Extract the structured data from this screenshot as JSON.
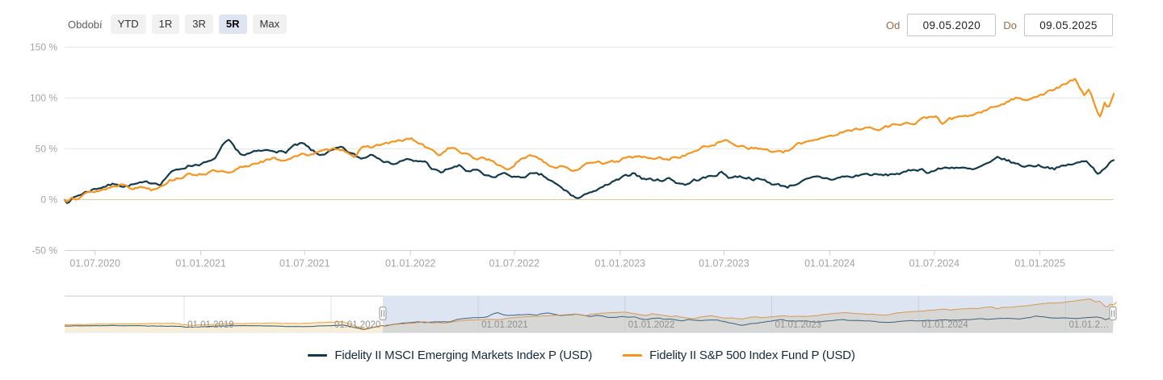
{
  "period_selector": {
    "label": "Období",
    "buttons": [
      {
        "label": "YTD",
        "selected": false
      },
      {
        "label": "1R",
        "selected": false
      },
      {
        "label": "3R",
        "selected": false
      },
      {
        "label": "5R",
        "selected": true
      },
      {
        "label": "Max",
        "selected": false
      }
    ]
  },
  "date_range": {
    "from_label": "Od",
    "from_value": "09.05.2020",
    "to_label": "Do",
    "to_value": "09.05.2025"
  },
  "legend": [
    {
      "label": "Fidelity II MSCI Emerging Markets Index P (USD)",
      "color": "#123a4c"
    },
    {
      "label": "Fidelity II S&P 500 Index Fund P (USD)",
      "color": "#f7941e"
    }
  ],
  "chart_data": {
    "type": "line",
    "title": "",
    "x_unit": "months since 09.05.2020",
    "x_range": [
      "09.05.2020",
      "09.05.2025"
    ],
    "ylim": [
      -50,
      150
    ],
    "grid": true,
    "legend_position": "bottom",
    "y_ticks": [
      {
        "label": "150 %",
        "value": 150
      },
      {
        "label": "100 %",
        "value": 100
      },
      {
        "label": "50 %",
        "value": 50
      },
      {
        "label": "0 %",
        "value": 0
      },
      {
        "label": "-50 %",
        "value": -50
      }
    ],
    "x_ticks": [
      {
        "label": "01.07.2020",
        "m": 1.74
      },
      {
        "label": "01.01.2021",
        "m": 7.79
      },
      {
        "label": "01.07.2021",
        "m": 13.73
      },
      {
        "label": "01.01.2022",
        "m": 19.78
      },
      {
        "label": "01.07.2022",
        "m": 25.72
      },
      {
        "label": "01.01.2023",
        "m": 31.77
      },
      {
        "label": "01.07.2023",
        "m": 37.71
      },
      {
        "label": "01.01.2024",
        "m": 43.76
      },
      {
        "label": "01.07.2024",
        "m": 49.74
      },
      {
        "label": "01.01.2025",
        "m": 55.78
      }
    ],
    "series": [
      {
        "name": "Fidelity II MSCI Emerging Markets Index P (USD)",
        "color": "#123a4c",
        "points": [
          [
            0,
            0
          ],
          [
            0.25,
            -3
          ],
          [
            0.5,
            2
          ],
          [
            1,
            6
          ],
          [
            1.6,
            10
          ],
          [
            2,
            12
          ],
          [
            3,
            16
          ],
          [
            3.4,
            13
          ],
          [
            4,
            15
          ],
          [
            5,
            17
          ],
          [
            5.5,
            16
          ],
          [
            6,
            26
          ],
          [
            7,
            33
          ],
          [
            8,
            36
          ],
          [
            8.5,
            38
          ],
          [
            9,
            52
          ],
          [
            9.4,
            58
          ],
          [
            9.8,
            48
          ],
          [
            10.2,
            44
          ],
          [
            11,
            47
          ],
          [
            12,
            49
          ],
          [
            12.6,
            46
          ],
          [
            13,
            52
          ],
          [
            13.6,
            55
          ],
          [
            14,
            50
          ],
          [
            14.5,
            44
          ],
          [
            15,
            46
          ],
          [
            15.8,
            51
          ],
          [
            16.3,
            46
          ],
          [
            17,
            40
          ],
          [
            17.5,
            45
          ],
          [
            18,
            42
          ],
          [
            18.5,
            36
          ],
          [
            19,
            36
          ],
          [
            19.5,
            40
          ],
          [
            20,
            37
          ],
          [
            20.6,
            38
          ],
          [
            21,
            31
          ],
          [
            21.5,
            26
          ],
          [
            22,
            31
          ],
          [
            22.6,
            33
          ],
          [
            23,
            28
          ],
          [
            23.5,
            29
          ],
          [
            24,
            24
          ],
          [
            24.5,
            21
          ],
          [
            25,
            26
          ],
          [
            25.5,
            24
          ],
          [
            26,
            21
          ],
          [
            26.6,
            25
          ],
          [
            27.3,
            24
          ],
          [
            28,
            16
          ],
          [
            28.8,
            7
          ],
          [
            29.3,
            1
          ],
          [
            29.7,
            3
          ],
          [
            30,
            8
          ],
          [
            30.6,
            10
          ],
          [
            31,
            14
          ],
          [
            32,
            22
          ],
          [
            32.6,
            27
          ],
          [
            33,
            21
          ],
          [
            33.5,
            20
          ],
          [
            34,
            19
          ],
          [
            34.6,
            21
          ],
          [
            35,
            17
          ],
          [
            35.6,
            15
          ],
          [
            36,
            19
          ],
          [
            37,
            23
          ],
          [
            37.6,
            27
          ],
          [
            38,
            22
          ],
          [
            38.6,
            23
          ],
          [
            39,
            22
          ],
          [
            39.6,
            20
          ],
          [
            40,
            19
          ],
          [
            40.6,
            15
          ],
          [
            41,
            14
          ],
          [
            41.4,
            13
          ],
          [
            42,
            17
          ],
          [
            42.6,
            20
          ],
          [
            43,
            22
          ],
          [
            43.6,
            21
          ],
          [
            44,
            20
          ],
          [
            44.6,
            23
          ],
          [
            45,
            22
          ],
          [
            45.6,
            25
          ],
          [
            46,
            25
          ],
          [
            46.6,
            24
          ],
          [
            47,
            24
          ],
          [
            47.6,
            26
          ],
          [
            48,
            26
          ],
          [
            48.6,
            30
          ],
          [
            49,
            30
          ],
          [
            49.4,
            27
          ],
          [
            50,
            30
          ],
          [
            50.6,
            32
          ],
          [
            51,
            32
          ],
          [
            51.6,
            30
          ],
          [
            52,
            29
          ],
          [
            52.6,
            34
          ],
          [
            53,
            36
          ],
          [
            53.4,
            42
          ],
          [
            53.8,
            39
          ],
          [
            54,
            38
          ],
          [
            54.6,
            34
          ],
          [
            55,
            33
          ],
          [
            55.6,
            34
          ],
          [
            56,
            33
          ],
          [
            56.6,
            31
          ],
          [
            57,
            32
          ],
          [
            57.6,
            35
          ],
          [
            58,
            36
          ],
          [
            58.4,
            38
          ],
          [
            58.8,
            33
          ],
          [
            59.1,
            25
          ],
          [
            59.4,
            31
          ],
          [
            59.7,
            35
          ],
          [
            60,
            38
          ]
        ]
      },
      {
        "name": "Fidelity II S&P 500 Index Fund P (USD)",
        "color": "#f7941e",
        "points": [
          [
            0,
            0
          ],
          [
            0.15,
            -2
          ],
          [
            0.4,
            4
          ],
          [
            0.7,
            2
          ],
          [
            1,
            5
          ],
          [
            1.6,
            8
          ],
          [
            2,
            9
          ],
          [
            2.6,
            12
          ],
          [
            3,
            14
          ],
          [
            3.4,
            16
          ],
          [
            4,
            11
          ],
          [
            4.5,
            13
          ],
          [
            5,
            10
          ],
          [
            5.6,
            15
          ],
          [
            6,
            19
          ],
          [
            6.6,
            22
          ],
          [
            7,
            24
          ],
          [
            8,
            26
          ],
          [
            8.6,
            28
          ],
          [
            9,
            27
          ],
          [
            9.5,
            25
          ],
          [
            10,
            31
          ],
          [
            10.6,
            34
          ],
          [
            11,
            37
          ],
          [
            12,
            40
          ],
          [
            12.6,
            39
          ],
          [
            13,
            42
          ],
          [
            14,
            45
          ],
          [
            15,
            48
          ],
          [
            15.7,
            51
          ],
          [
            16.2,
            47
          ],
          [
            16.6,
            43
          ],
          [
            17,
            50
          ],
          [
            18,
            54
          ],
          [
            18.6,
            56
          ],
          [
            19,
            57
          ],
          [
            19.8,
            60
          ],
          [
            20.3,
            55
          ],
          [
            20.6,
            52
          ],
          [
            21,
            48
          ],
          [
            21.5,
            44
          ],
          [
            22,
            52
          ],
          [
            22.5,
            48
          ],
          [
            23,
            44
          ],
          [
            23.5,
            40
          ],
          [
            24,
            42
          ],
          [
            24.8,
            34
          ],
          [
            25.4,
            30
          ],
          [
            26,
            38
          ],
          [
            26.8,
            44
          ],
          [
            27.5,
            37
          ],
          [
            28,
            32
          ],
          [
            28.5,
            34
          ],
          [
            29,
            30
          ],
          [
            29.4,
            28
          ],
          [
            30,
            36
          ],
          [
            30.5,
            39
          ],
          [
            31,
            35
          ],
          [
            31.6,
            38
          ],
          [
            32,
            40
          ],
          [
            32.8,
            43
          ],
          [
            33.5,
            40
          ],
          [
            34,
            41
          ],
          [
            34.6,
            40
          ],
          [
            35,
            42
          ],
          [
            35.6,
            44
          ],
          [
            36,
            48
          ],
          [
            37,
            54
          ],
          [
            37.8,
            58
          ],
          [
            38.5,
            54
          ],
          [
            39,
            52
          ],
          [
            39.6,
            50
          ],
          [
            40,
            50
          ],
          [
            40.6,
            47
          ],
          [
            41,
            46
          ],
          [
            41.4,
            48
          ],
          [
            42,
            55
          ],
          [
            43,
            60
          ],
          [
            44,
            64
          ],
          [
            44.5,
            66
          ],
          [
            45,
            68
          ],
          [
            45.8,
            72
          ],
          [
            46.5,
            68
          ],
          [
            47,
            72
          ],
          [
            48,
            76
          ],
          [
            48.6,
            74
          ],
          [
            49,
            79
          ],
          [
            49.8,
            83
          ],
          [
            50.2,
            73
          ],
          [
            50.6,
            80
          ],
          [
            51,
            80
          ],
          [
            51.6,
            82
          ],
          [
            52,
            84
          ],
          [
            52.6,
            87
          ],
          [
            53,
            90
          ],
          [
            54,
            97
          ],
          [
            54.5,
            100
          ],
          [
            55,
            99
          ],
          [
            55.6,
            102
          ],
          [
            56,
            104
          ],
          [
            56.8,
            110
          ],
          [
            57.5,
            116
          ],
          [
            57.8,
            118
          ],
          [
            58.3,
            104
          ],
          [
            58.6,
            108
          ],
          [
            59,
            88
          ],
          [
            59.2,
            80
          ],
          [
            59.5,
            96
          ],
          [
            59.7,
            90
          ],
          [
            60,
            103
          ]
        ]
      }
    ],
    "navigator": {
      "t_unit": "years since 09.03.2018",
      "t_max": 7.143,
      "selected_from_t": 2.168,
      "selected_to_t": 7.143,
      "x_labels": [
        {
          "label": "01.01.2019",
          "t": 0.815
        },
        {
          "label": "01.01.2020",
          "t": 1.815
        },
        {
          "label": "01.01.2021",
          "t": 2.818
        },
        {
          "label": "01.01.2022",
          "t": 3.818
        },
        {
          "label": "01.01.2023",
          "t": 4.818
        },
        {
          "label": "01.01.2024",
          "t": 5.818
        },
        {
          "label": "01.01.2…",
          "t": 6.821
        }
      ],
      "pre_series": [
        {
          "name": "Fidelity II MSCI Emerging Markets Index P (USD)",
          "pre_points": [
            [
              0,
              -2
            ],
            [
              0.3,
              0
            ],
            [
              0.5,
              -1
            ],
            [
              0.75,
              -3
            ],
            [
              0.87,
              -8
            ],
            [
              1,
              -3
            ],
            [
              1.2,
              0
            ],
            [
              1.4,
              -2
            ],
            [
              1.6,
              -5
            ],
            [
              1.75,
              -2
            ],
            [
              1.9,
              2
            ],
            [
              2.04,
              -18
            ],
            [
              2.1,
              -9
            ],
            [
              2.15,
              -2
            ]
          ]
        },
        {
          "name": "Fidelity II S&P 500 Index Fund P (USD)",
          "pre_points": [
            [
              0,
              4
            ],
            [
              0.3,
              7
            ],
            [
              0.55,
              9
            ],
            [
              0.75,
              10
            ],
            [
              0.85,
              1
            ],
            [
              1,
              5
            ],
            [
              1.2,
              9
            ],
            [
              1.4,
              11
            ],
            [
              1.6,
              9
            ],
            [
              1.75,
              13
            ],
            [
              1.9,
              17
            ],
            [
              2.04,
              -15
            ],
            [
              2.1,
              -6
            ],
            [
              2.15,
              -1
            ]
          ]
        }
      ]
    },
    "colors": {
      "zero_line": "#e2c79b",
      "grid": "#e8e8e8",
      "axis": "#cfcfcf",
      "axis_label": "#a3a3a3",
      "nav_mask": "rgba(102,133,194,0.22)",
      "nav_area": "rgba(243,226,189,0.55)",
      "nav_label": "#8f8f8f"
    }
  }
}
